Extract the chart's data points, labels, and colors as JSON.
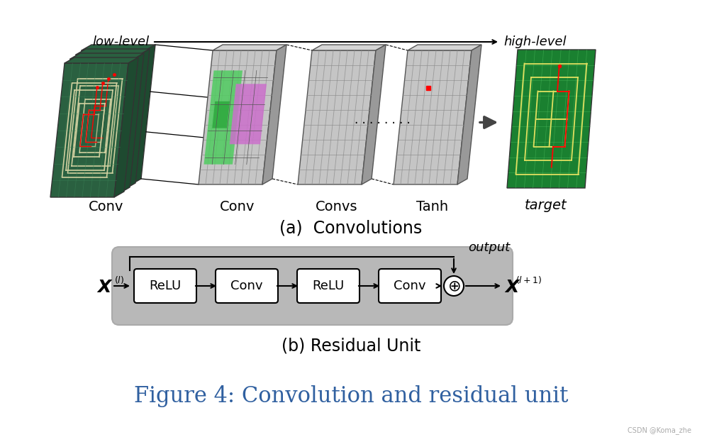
{
  "fig_width": 9.9,
  "fig_height": 6.23,
  "bg_color": "#ffffff",
  "title_text": "Figure 4: Convolution and residual unit",
  "title_color": "#3060a0",
  "title_fontsize": 22,
  "subtitle_a": "(a)  Convolutions",
  "subtitle_b": "(b) Residual Unit",
  "subtitle_fontsize": 17,
  "watermark": "CSDN @Koma_zhe",
  "watermark_fontsize": 7,
  "block_labels": [
    "ReLU",
    "Conv",
    "ReLU",
    "Conv"
  ],
  "block_label_fontsize": 13,
  "conv_labels": [
    "Conv",
    "Conv",
    "Convs",
    "Tanh"
  ],
  "conv_label_fontsize": 14,
  "low_level_text": "low-level",
  "high_level_text": "high-level",
  "target_text": "target",
  "output_text": "output"
}
